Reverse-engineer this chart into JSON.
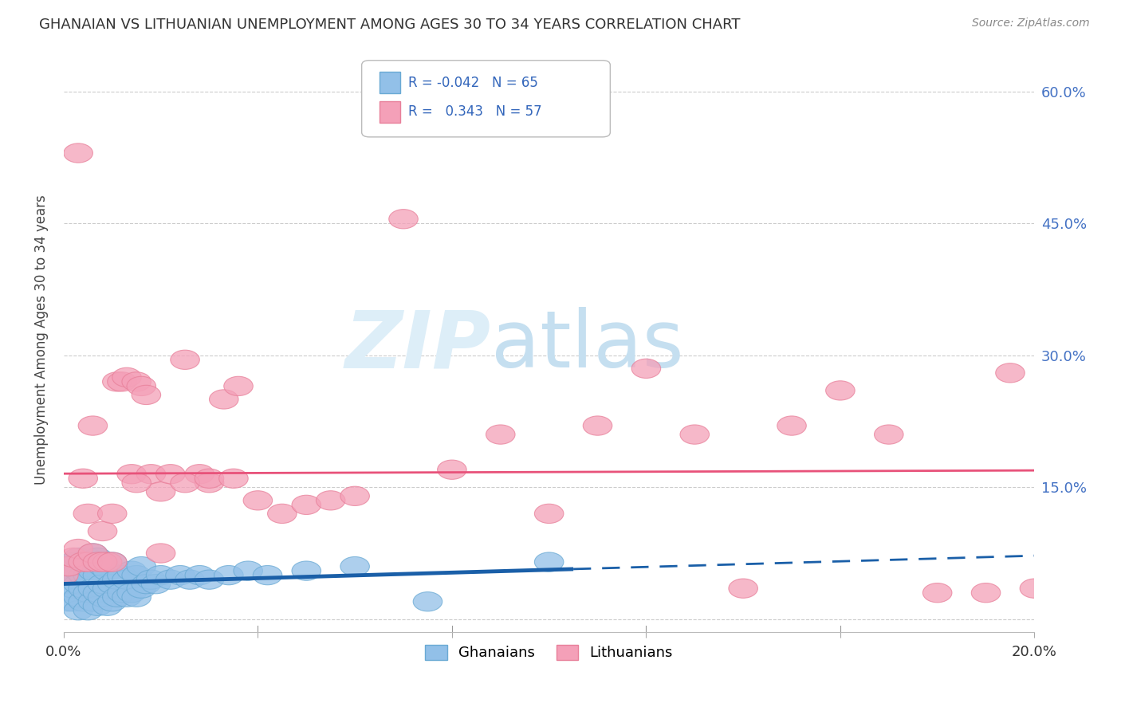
{
  "title": "GHANAIAN VS LITHUANIAN UNEMPLOYMENT AMONG AGES 30 TO 34 YEARS CORRELATION CHART",
  "source": "Source: ZipAtlas.com",
  "ylabel": "Unemployment Among Ages 30 to 34 years",
  "xlim": [
    0.0,
    0.2
  ],
  "ylim": [
    -0.015,
    0.65
  ],
  "yticks": [
    0.0,
    0.15,
    0.3,
    0.45,
    0.6
  ],
  "ytick_labels": [
    "",
    "15.0%",
    "30.0%",
    "45.0%",
    "60.0%"
  ],
  "xticks": [
    0.0,
    0.04,
    0.08,
    0.12,
    0.16,
    0.2
  ],
  "ghanaian_color": "#92c0e8",
  "ghanaian_edge_color": "#6aaad4",
  "lithuanian_color": "#f4a0b8",
  "lithuanian_edge_color": "#e8809a",
  "ghanaian_line_color": "#1a5fa8",
  "lithuanian_line_color": "#e8527a",
  "ghanaians_x": [
    0.001,
    0.001,
    0.001,
    0.002,
    0.002,
    0.002,
    0.002,
    0.003,
    0.003,
    0.003,
    0.003,
    0.003,
    0.004,
    0.004,
    0.004,
    0.004,
    0.005,
    0.005,
    0.005,
    0.005,
    0.006,
    0.006,
    0.006,
    0.006,
    0.007,
    0.007,
    0.007,
    0.007,
    0.008,
    0.008,
    0.008,
    0.009,
    0.009,
    0.009,
    0.01,
    0.01,
    0.01,
    0.011,
    0.011,
    0.012,
    0.012,
    0.013,
    0.013,
    0.014,
    0.014,
    0.015,
    0.015,
    0.016,
    0.016,
    0.017,
    0.018,
    0.019,
    0.02,
    0.022,
    0.024,
    0.026,
    0.028,
    0.03,
    0.034,
    0.038,
    0.042,
    0.05,
    0.06,
    0.075,
    0.1
  ],
  "ghanaians_y": [
    0.02,
    0.04,
    0.06,
    0.02,
    0.035,
    0.05,
    0.065,
    0.01,
    0.025,
    0.04,
    0.055,
    0.07,
    0.02,
    0.035,
    0.05,
    0.065,
    0.01,
    0.03,
    0.05,
    0.07,
    0.02,
    0.035,
    0.055,
    0.075,
    0.015,
    0.03,
    0.05,
    0.07,
    0.025,
    0.04,
    0.06,
    0.015,
    0.035,
    0.055,
    0.02,
    0.04,
    0.065,
    0.025,
    0.045,
    0.03,
    0.05,
    0.025,
    0.045,
    0.03,
    0.055,
    0.025,
    0.05,
    0.035,
    0.06,
    0.04,
    0.045,
    0.04,
    0.05,
    0.045,
    0.05,
    0.045,
    0.05,
    0.045,
    0.05,
    0.055,
    0.05,
    0.055,
    0.06,
    0.02,
    0.065
  ],
  "lithuanians_x": [
    0.0,
    0.001,
    0.002,
    0.003,
    0.004,
    0.005,
    0.005,
    0.006,
    0.007,
    0.008,
    0.009,
    0.01,
    0.011,
    0.012,
    0.013,
    0.014,
    0.015,
    0.016,
    0.017,
    0.018,
    0.02,
    0.022,
    0.025,
    0.028,
    0.03,
    0.033,
    0.036,
    0.04,
    0.045,
    0.05,
    0.055,
    0.06,
    0.07,
    0.08,
    0.09,
    0.1,
    0.11,
    0.12,
    0.13,
    0.14,
    0.15,
    0.16,
    0.17,
    0.18,
    0.19,
    0.195,
    0.2,
    0.003,
    0.004,
    0.006,
    0.008,
    0.01,
    0.015,
    0.02,
    0.025,
    0.03,
    0.035
  ],
  "lithuanians_y": [
    0.05,
    0.06,
    0.07,
    0.08,
    0.065,
    0.12,
    0.065,
    0.075,
    0.065,
    0.1,
    0.065,
    0.12,
    0.27,
    0.27,
    0.275,
    0.165,
    0.27,
    0.265,
    0.255,
    0.165,
    0.145,
    0.165,
    0.295,
    0.165,
    0.155,
    0.25,
    0.265,
    0.135,
    0.12,
    0.13,
    0.135,
    0.14,
    0.455,
    0.17,
    0.21,
    0.12,
    0.22,
    0.285,
    0.21,
    0.035,
    0.22,
    0.26,
    0.21,
    0.03,
    0.03,
    0.28,
    0.035,
    0.53,
    0.16,
    0.22,
    0.065,
    0.065,
    0.155,
    0.075,
    0.155,
    0.16,
    0.16
  ]
}
